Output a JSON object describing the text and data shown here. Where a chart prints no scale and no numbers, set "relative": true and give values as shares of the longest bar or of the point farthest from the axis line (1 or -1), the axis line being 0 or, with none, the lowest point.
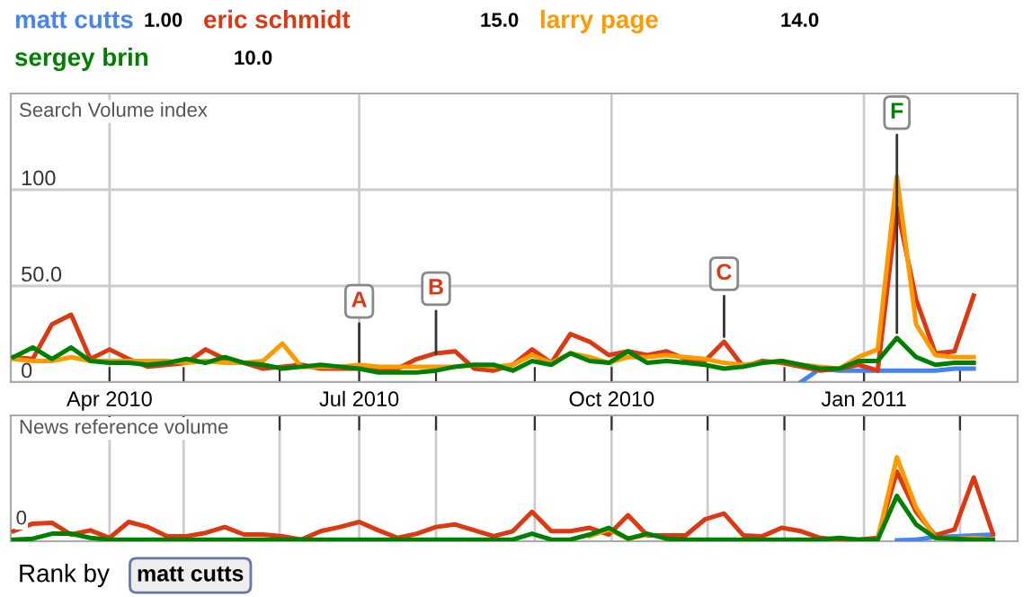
{
  "chart_data": [
    {
      "type": "line",
      "title": "Search Volume index",
      "legend": "top",
      "grid": true,
      "x": [
        "2010-02-25",
        "2010-03-04",
        "2010-03-11",
        "2010-03-18",
        "2010-03-25",
        "2010-04-01",
        "2010-04-08",
        "2010-04-15",
        "2010-04-22",
        "2010-04-29",
        "2010-05-06",
        "2010-05-13",
        "2010-05-20",
        "2010-05-27",
        "2010-06-03",
        "2010-06-10",
        "2010-06-17",
        "2010-06-24",
        "2010-07-01",
        "2010-07-08",
        "2010-07-15",
        "2010-07-22",
        "2010-07-29",
        "2010-08-05",
        "2010-08-12",
        "2010-08-19",
        "2010-08-26",
        "2010-09-02",
        "2010-09-09",
        "2010-09-16",
        "2010-09-23",
        "2010-09-30",
        "2010-10-07",
        "2010-10-14",
        "2010-10-21",
        "2010-10-28",
        "2010-11-04",
        "2010-11-11",
        "2010-11-18",
        "2010-11-25",
        "2010-12-02",
        "2010-12-09",
        "2010-12-16",
        "2010-12-23",
        "2010-12-30",
        "2011-01-06",
        "2011-01-13",
        "2011-01-20",
        "2011-01-27",
        "2011-02-03",
        "2011-02-10"
      ],
      "xlim": [
        "2010-02-24",
        "2011-02-26"
      ],
      "xticks": [
        {
          "value": "2010-04-01",
          "label": "Apr 2010"
        },
        {
          "value": "2010-04-28",
          "label": null
        },
        {
          "value": "2010-06-02",
          "label": null
        },
        {
          "value": "2010-07-01",
          "label": "Jul 2010"
        },
        {
          "value": "2010-07-29",
          "label": null
        },
        {
          "value": "2010-09-03",
          "label": null
        },
        {
          "value": "2010-10-01",
          "label": "Oct 2010"
        },
        {
          "value": "2010-11-05",
          "label": null
        },
        {
          "value": "2010-12-03",
          "label": null
        },
        {
          "value": "2011-01-01",
          "label": "Jan 2011"
        },
        {
          "value": "2011-02-05",
          "label": null
        }
      ],
      "ylim": [
        0,
        150
      ],
      "yticks": [
        0,
        {
          "value": 50,
          "label": "50.0"
        },
        100
      ],
      "series": [
        {
          "name": "matt cutts",
          "color": "#4684ee",
          "values": [
            null,
            null,
            null,
            null,
            null,
            null,
            null,
            null,
            null,
            null,
            null,
            null,
            null,
            null,
            null,
            null,
            null,
            null,
            null,
            null,
            null,
            null,
            null,
            null,
            null,
            null,
            null,
            null,
            null,
            null,
            null,
            null,
            null,
            null,
            null,
            null,
            null,
            null,
            null,
            null,
            null,
            0,
            7,
            6,
            6,
            6,
            6,
            6,
            6,
            7,
            7
          ]
        },
        {
          "name": "eric schmidt",
          "color": "#dc3912",
          "values": [
            13,
            12,
            30,
            35,
            12,
            17,
            12,
            8,
            9,
            10,
            17,
            12,
            10,
            7,
            8,
            9,
            7,
            7,
            7,
            7,
            7,
            12,
            15,
            16,
            7,
            6,
            9,
            17,
            10,
            25,
            21,
            14,
            16,
            14,
            16,
            12,
            11,
            21,
            8,
            11,
            10,
            8,
            6,
            7,
            9,
            6,
            91,
            43,
            15,
            16,
            45
          ]
        },
        {
          "name": "larry page",
          "color": "#ff9900",
          "values": [
            12,
            11,
            11,
            13,
            11,
            11,
            11,
            11,
            11,
            10,
            11,
            10,
            10,
            11,
            20,
            8,
            8,
            8,
            9,
            8,
            8,
            8,
            8,
            8,
            9,
            8,
            9,
            14,
            10,
            15,
            13,
            10,
            13,
            13,
            14,
            13,
            12,
            10,
            9,
            10,
            11,
            9,
            8,
            7,
            13,
            17,
            107,
            30,
            14,
            13,
            13
          ]
        },
        {
          "name": "sergey brin",
          "color": "#008000",
          "values": [
            13,
            18,
            12,
            18,
            11,
            10,
            10,
            9,
            10,
            12,
            10,
            13,
            10,
            9,
            7,
            8,
            9,
            8,
            7,
            5,
            5,
            5,
            6,
            8,
            9,
            9,
            6,
            11,
            9,
            15,
            11,
            10,
            16,
            10,
            11,
            10,
            9,
            7,
            8,
            10,
            11,
            9,
            7,
            7,
            11,
            11,
            23,
            13,
            9,
            10,
            10
          ]
        }
      ],
      "annotations": [
        "1.00",
        "15.0",
        "14.0",
        "10.0",
        {
          "text": "A",
          "x": "2010-07-01",
          "y": 8
        },
        {
          "text": "B",
          "x": "2010-07-29",
          "y": 12
        },
        {
          "text": "C",
          "x": "2010-11-11",
          "y": 21
        },
        {
          "text": "F",
          "x": "2011-01-13",
          "y": 23
        }
      ]
    },
    {
      "type": "line",
      "title": "News reference volume",
      "relative": true,
      "grid": "x",
      "tick_labels": false,
      "x": [
        "2010-02-25",
        "2010-03-04",
        "2010-03-11",
        "2010-03-18",
        "2010-03-25",
        "2010-04-01",
        "2010-04-08",
        "2010-04-15",
        "2010-04-22",
        "2010-04-29",
        "2010-05-06",
        "2010-05-13",
        "2010-05-20",
        "2010-05-27",
        "2010-06-03",
        "2010-06-10",
        "2010-06-17",
        "2010-06-24",
        "2010-07-01",
        "2010-07-08",
        "2010-07-15",
        "2010-07-22",
        "2010-07-29",
        "2010-08-05",
        "2010-08-12",
        "2010-08-19",
        "2010-08-26",
        "2010-09-02",
        "2010-09-09",
        "2010-09-16",
        "2010-09-23",
        "2010-09-30",
        "2010-10-07",
        "2010-10-14",
        "2010-10-21",
        "2010-10-28",
        "2010-11-04",
        "2010-11-11",
        "2010-11-18",
        "2010-11-25",
        "2010-12-02",
        "2010-12-09",
        "2010-12-16",
        "2010-12-23",
        "2010-12-30",
        "2011-01-06",
        "2011-01-13",
        "2011-01-20",
        "2011-01-27",
        "2011-02-03",
        "2011-02-10",
        "2011-02-17"
      ],
      "xlim": [
        "2010-02-24",
        "2011-02-26"
      ],
      "xticks": [
        {
          "value": "2010-04-01",
          "label": null
        },
        {
          "value": "2010-04-28",
          "label": null
        },
        {
          "value": "2010-06-02",
          "label": null
        },
        {
          "value": "2010-07-01",
          "label": null
        },
        {
          "value": "2010-07-29",
          "label": null
        },
        {
          "value": "2010-09-03",
          "label": null
        },
        {
          "value": "2010-10-01",
          "label": null
        },
        {
          "value": "2010-11-05",
          "label": null
        },
        {
          "value": "2010-12-03",
          "label": null
        },
        {
          "value": "2011-01-01",
          "label": null
        },
        {
          "value": "2011-02-05",
          "label": null
        }
      ],
      "series": [
        {
          "color": "#4684ee",
          "values": [
            null,
            null,
            null,
            null,
            null,
            null,
            null,
            null,
            null,
            null,
            null,
            null,
            null,
            null,
            null,
            null,
            null,
            null,
            null,
            null,
            null,
            null,
            null,
            null,
            null,
            null,
            null,
            null,
            null,
            null,
            null,
            null,
            null,
            null,
            null,
            null,
            null,
            null,
            null,
            null,
            null,
            null,
            null,
            null,
            null,
            null,
            0.01,
            0.02,
            0.05,
            0.06,
            0.07,
            0.08
          ]
        },
        {
          "color": "#dc3912",
          "values": [
            0.12,
            0.21,
            0.22,
            0.08,
            0.13,
            0.04,
            0.23,
            0.17,
            0.06,
            0.06,
            0.1,
            0.17,
            0.08,
            0.08,
            0.06,
            0.02,
            0.12,
            0.17,
            0.23,
            0.13,
            0.04,
            0.09,
            0.17,
            0.2,
            0.13,
            0.06,
            0.12,
            0.35,
            0.12,
            0.12,
            0.16,
            0.08,
            0.31,
            0.07,
            0.07,
            0.07,
            0.26,
            0.33,
            0.07,
            0.06,
            0.16,
            0.12,
            0.04,
            0.02,
            0.02,
            0.04,
            0.83,
            0.35,
            0.07,
            0.14,
            0.76,
            0.09
          ]
        },
        {
          "color": "#ff9900",
          "values": [
            null,
            null,
            null,
            null,
            null,
            null,
            null,
            null,
            null,
            null,
            null,
            null,
            null,
            null,
            null,
            null,
            null,
            null,
            null,
            null,
            null,
            null,
            null,
            null,
            null,
            null,
            null,
            null,
            null,
            null,
            0.06,
            0.14,
            0.03,
            0.08,
            null,
            null,
            null,
            null,
            null,
            null,
            null,
            null,
            null,
            null,
            null,
            0.03,
            1.0,
            0.4,
            0.04,
            0.03,
            0.04,
            0.02
          ]
        },
        {
          "color": "#008000",
          "values": [
            0.02,
            0.03,
            0.09,
            0.09,
            0.04,
            0.02,
            0.02,
            0.02,
            0.02,
            0.02,
            0.02,
            0.02,
            0.02,
            0.02,
            0.02,
            0.02,
            0.02,
            0.02,
            0.02,
            0.02,
            0.02,
            0.02,
            0.02,
            0.02,
            0.02,
            0.02,
            0.02,
            0.09,
            0.02,
            0.02,
            0.08,
            0.16,
            0.03,
            0.09,
            0.03,
            0.02,
            0.02,
            0.02,
            0.02,
            0.02,
            0.02,
            0.02,
            0.02,
            0.04,
            0.02,
            0.02,
            0.54,
            0.2,
            0.04,
            0.03,
            0.02,
            0.02
          ]
        }
      ],
      "annotations": [
        "0",
        "Rank by",
        "matt cutts"
      ]
    }
  ]
}
